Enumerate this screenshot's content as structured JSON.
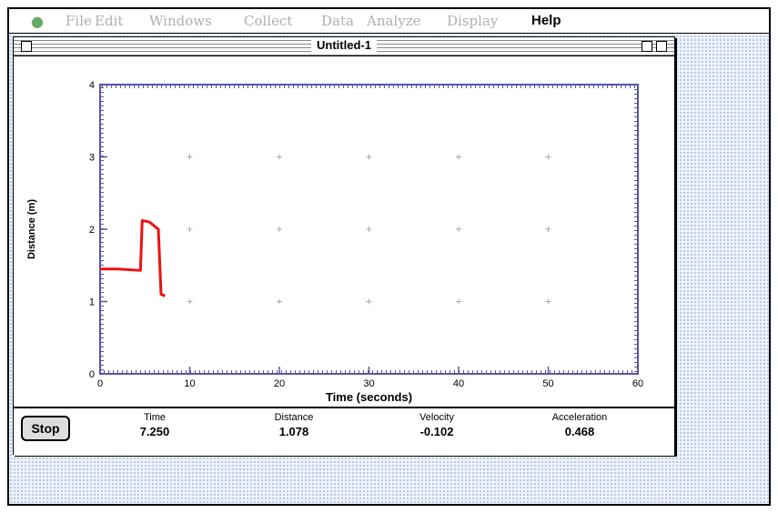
{
  "menu": [
    "File",
    "Edit",
    "Windows",
    "Collect",
    "Data",
    "Analyze",
    "Display",
    "Help"
  ],
  "window": {
    "title": "Untitled-1"
  },
  "button": "Stop",
  "readouts": [
    {
      "label": "Time",
      "value": "7.250"
    },
    {
      "label": "Distance",
      "value": "1.078"
    },
    {
      "label": "Velocity",
      "value": "-0.102"
    },
    {
      "label": "Acceleration",
      "value": "0.468"
    }
  ],
  "chart_data": {
    "type": "line",
    "x_label": "Time (seconds)",
    "y_label": "Distance (m)",
    "xlim": [
      0,
      60
    ],
    "ylim": [
      0,
      4
    ],
    "xticks": [
      0,
      10,
      20,
      30,
      40,
      50,
      60
    ],
    "yticks": [
      0,
      1,
      2,
      3,
      4
    ],
    "grid": true,
    "series": [
      {
        "color": "#ee1111",
        "x": [
          0,
          2,
          4.5,
          4.7,
          5.5,
          6.5,
          6.8,
          7.25
        ],
        "values": [
          1.45,
          1.45,
          1.43,
          2.12,
          2.1,
          2.0,
          1.1,
          1.078
        ]
      }
    ]
  }
}
